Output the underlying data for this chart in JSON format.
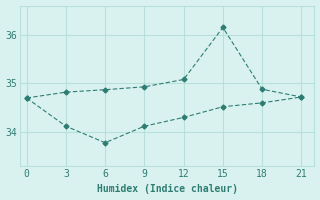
{
  "xlabel": "Humidex (Indice chaleur)",
  "x": [
    0,
    3,
    6,
    9,
    12,
    15,
    18,
    21
  ],
  "line_max": [
    34.7,
    34.82,
    34.87,
    34.93,
    35.08,
    36.15,
    34.88,
    34.72
  ],
  "line_min": [
    34.7,
    34.12,
    33.78,
    34.12,
    34.3,
    34.52,
    34.6,
    34.72
  ],
  "line_color": "#2e7d72",
  "background_color": "#d9f2f0",
  "grid_color": "#b8e0db",
  "ylim": [
    33.3,
    36.6
  ],
  "xlim": [
    -0.5,
    22.0
  ],
  "xticks": [
    0,
    3,
    6,
    9,
    12,
    15,
    18,
    21
  ],
  "yticks": [
    34,
    35,
    36
  ],
  "marker": "D",
  "marker_size": 2.5,
  "linewidth": 0.8,
  "linestyle": "--"
}
